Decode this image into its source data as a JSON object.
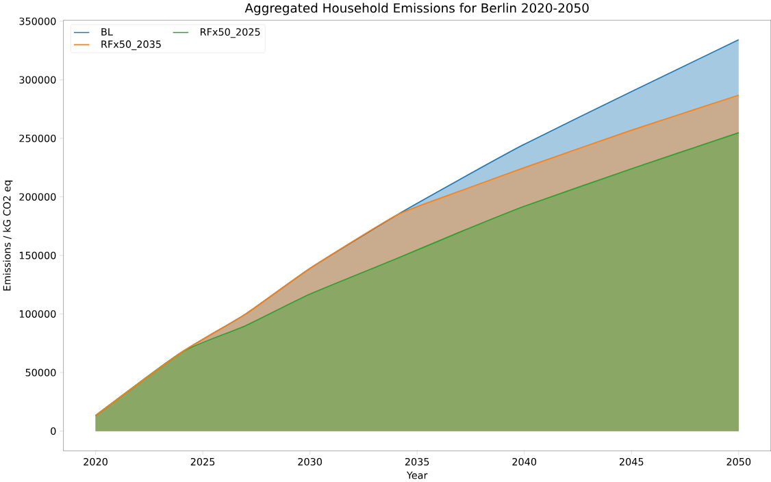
{
  "chart_data": {
    "type": "area",
    "title": "Aggregated Household Emissions for Berlin 2020-2050",
    "xlabel": "Year",
    "ylabel": "Emissions / kG CO2 eq",
    "x": [
      2020,
      2024,
      2027,
      2030,
      2034,
      2037,
      2040,
      2045,
      2050
    ],
    "series": [
      {
        "name": "BL",
        "color": "#1f77b4",
        "values": [
          13300,
          67200,
          100000,
          139000,
          184000,
          215000,
          245000,
          290000,
          334200
        ]
      },
      {
        "name": "RFx50_2035",
        "color": "#ff7f0e",
        "values": [
          13300,
          67200,
          100000,
          139000,
          184000,
          205000,
          225000,
          257000,
          286900
        ]
      },
      {
        "name": "RFx50_2025",
        "color": "#2ca02c",
        "values": [
          13300,
          67200,
          90000,
          117000,
          147000,
          170000,
          192000,
          224000,
          254800
        ]
      }
    ],
    "xlim": [
      2018.5,
      2051.5
    ],
    "ylim": [
      -17000,
      351000
    ],
    "xticks": [
      2020,
      2025,
      2030,
      2035,
      2040,
      2045,
      2050
    ],
    "yticks": [
      0,
      50000,
      100000,
      150000,
      200000,
      250000,
      300000,
      350000
    ],
    "legend": "top left",
    "grid": false
  }
}
